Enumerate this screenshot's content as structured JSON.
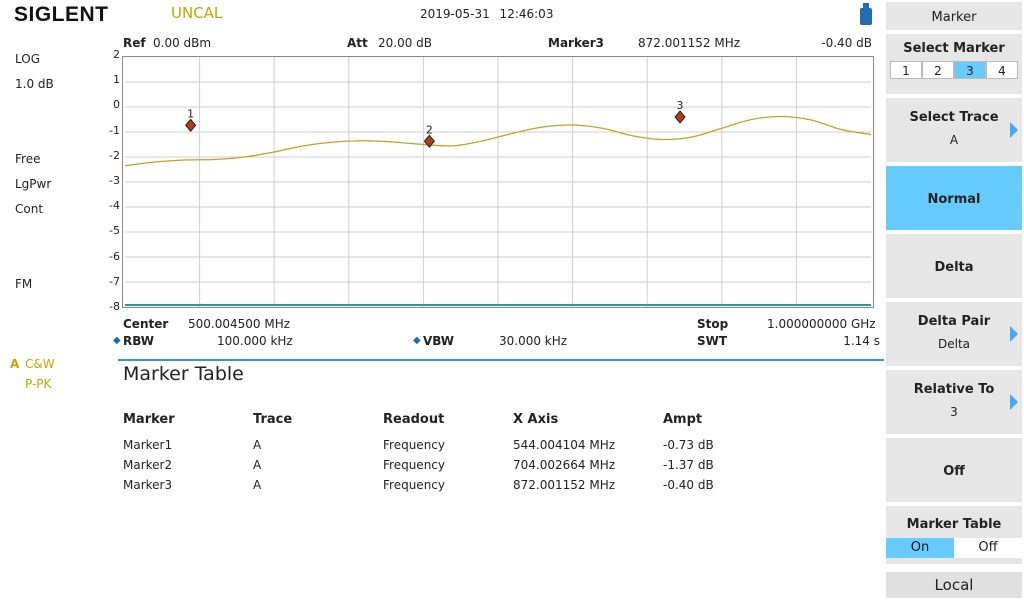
{
  "topbar": {
    "logo": "SIGLENT",
    "status": "UNCAL",
    "datetime": "2019-05-31   12:46:03"
  },
  "left_status": {
    "scale_type": "LOG",
    "scale_div": "1.0 dB",
    "trigger": "Free",
    "detector": "LgPwr",
    "sweep": "Cont",
    "demod": "FM",
    "trace_letter": "A",
    "trace_mode": "C&W",
    "trace_detector": "P-PK"
  },
  "graph_header": {
    "ref_label": "Ref",
    "ref_value": "0.00 dBm",
    "att_label": "Att",
    "att_value": "20.00 dB",
    "marker_label": "Marker3",
    "marker_freq": "872.001152 MHz",
    "marker_ampt": "-0.40 dB"
  },
  "y_axis_ticks": [
    "2",
    "1",
    "0",
    "-1",
    "-2",
    "-3",
    "-4",
    "-5",
    "-6",
    "-7",
    "-8"
  ],
  "chart_data": {
    "type": "line",
    "ylim": [
      -8,
      2
    ],
    "xlim_mhz": [
      500.0045,
      1000.0
    ],
    "grid": true,
    "series": [
      {
        "trace": "A",
        "color": "#c8a020",
        "x_mhz": [
          500,
          520,
          540,
          560,
          580,
          600,
          620,
          640,
          660,
          680,
          700,
          720,
          740,
          760,
          780,
          800,
          820,
          840,
          860,
          880,
          900,
          920,
          940,
          960,
          980,
          1000
        ],
        "y_db": [
          -2.35,
          -2.2,
          -2.12,
          -2.1,
          -2.0,
          -1.8,
          -1.55,
          -1.4,
          -1.35,
          -1.4,
          -1.5,
          -1.55,
          -1.35,
          -1.05,
          -0.8,
          -0.72,
          -0.85,
          -1.15,
          -1.3,
          -1.2,
          -0.85,
          -0.5,
          -0.38,
          -0.52,
          -0.9,
          -1.1
        ]
      }
    ],
    "markers": [
      {
        "label": "1",
        "x_mhz": 544.004104,
        "y_db": -0.73
      },
      {
        "label": "2",
        "x_mhz": 704.002664,
        "y_db": -1.37
      },
      {
        "label": "3",
        "x_mhz": 872.001152,
        "y_db": -0.4
      }
    ]
  },
  "footer": {
    "center_label": "Center",
    "center_value": "500.004500 MHz",
    "stop_label": "Stop",
    "stop_value": "1.000000000 GHz",
    "rbw_label": "RBW",
    "rbw_value": "100.000 kHz",
    "vbw_label": "VBW",
    "vbw_value": "30.000 kHz",
    "swt_label": "SWT",
    "swt_value": "1.14 s"
  },
  "marker_table": {
    "title": "Marker Table",
    "headers": [
      "Marker",
      "Trace",
      "Readout",
      "X Axis",
      "Ampt"
    ],
    "rows": [
      [
        "Marker1",
        "A",
        "Frequency",
        "544.004104 MHz",
        "-0.73 dB"
      ],
      [
        "Marker2",
        "A",
        "Frequency",
        "704.002664 MHz",
        "-1.37 dB"
      ],
      [
        "Marker3",
        "A",
        "Frequency",
        "872.001152 MHz",
        "-0.40 dB"
      ]
    ]
  },
  "menu": {
    "title": "Marker",
    "select_marker": {
      "label": "Select Marker",
      "options": [
        "1",
        "2",
        "3",
        "4"
      ],
      "selected": "3"
    },
    "select_trace": {
      "label": "Select Trace",
      "value": "A"
    },
    "normal": "Normal",
    "delta": "Delta",
    "delta_pair": {
      "label": "Delta Pair",
      "value": "Delta"
    },
    "relative_to": {
      "label": "Relative To",
      "value": "3"
    },
    "off": "Off",
    "marker_table": {
      "label": "Marker Table",
      "on": "On",
      "off": "Off",
      "selected": "On"
    },
    "local": "Local"
  },
  "colors": {
    "accent": "#66ccff",
    "trace": "#c8a020",
    "marker_fill": "#b83a10",
    "status": "#c9a400"
  }
}
